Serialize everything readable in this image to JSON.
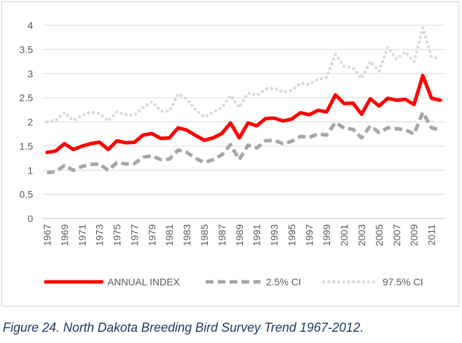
{
  "caption": "Figure 24. North Dakota Breeding Bird Survey Trend 1967-2012.",
  "chart_data": {
    "type": "line",
    "title": "",
    "xlabel": "",
    "ylabel": "",
    "ylim": [
      0,
      4
    ],
    "y_ticks": [
      "0",
      "0.5",
      "1",
      "1.5",
      "2",
      "2.5",
      "3",
      "3.5",
      "4"
    ],
    "grid": true,
    "legend_position": "bottom",
    "x": [
      1967,
      1968,
      1969,
      1970,
      1971,
      1972,
      1973,
      1974,
      1975,
      1976,
      1977,
      1978,
      1979,
      1980,
      1981,
      1982,
      1983,
      1984,
      1985,
      1986,
      1987,
      1988,
      1989,
      1990,
      1991,
      1992,
      1993,
      1994,
      1995,
      1996,
      1997,
      1998,
      1999,
      2000,
      2001,
      2002,
      2003,
      2004,
      2005,
      2006,
      2007,
      2008,
      2009,
      2010,
      2011,
      2012
    ],
    "x_tick_labels": [
      "1967",
      "1969",
      "1971",
      "1973",
      "1975",
      "1977",
      "1979",
      "1981",
      "1983",
      "1985",
      "1987",
      "1989",
      "1991",
      "1993",
      "1995",
      "1997",
      "1999",
      "2001",
      "2003",
      "2005",
      "2007",
      "2009",
      "2011"
    ],
    "series": [
      {
        "name": "ANNUAL INDEX",
        "color": "#ff0000",
        "style": "solid",
        "values": [
          1.37,
          1.4,
          1.55,
          1.43,
          1.5,
          1.55,
          1.58,
          1.43,
          1.61,
          1.57,
          1.58,
          1.73,
          1.76,
          1.66,
          1.67,
          1.88,
          1.83,
          1.72,
          1.62,
          1.67,
          1.76,
          1.98,
          1.67,
          1.98,
          1.92,
          2.07,
          2.08,
          2.02,
          2.06,
          2.19,
          2.15,
          2.24,
          2.21,
          2.56,
          2.38,
          2.39,
          2.16,
          2.48,
          2.33,
          2.49,
          2.45,
          2.47,
          2.36,
          2.96,
          2.49,
          2.45
        ]
      },
      {
        "name": "2.5% CI",
        "color": "#a6a6a6",
        "style": "dashed",
        "values": [
          0.95,
          0.97,
          1.1,
          1.0,
          1.08,
          1.12,
          1.13,
          1.0,
          1.16,
          1.13,
          1.14,
          1.27,
          1.3,
          1.22,
          1.23,
          1.42,
          1.37,
          1.25,
          1.16,
          1.22,
          1.32,
          1.53,
          1.22,
          1.52,
          1.46,
          1.61,
          1.62,
          1.55,
          1.6,
          1.7,
          1.68,
          1.75,
          1.73,
          1.99,
          1.87,
          1.85,
          1.67,
          1.92,
          1.78,
          1.88,
          1.86,
          1.84,
          1.75,
          2.2,
          1.88,
          1.83
        ]
      },
      {
        "name": "97.5% CI",
        "color": "#d9d9d9",
        "style": "dotted",
        "values": [
          2.0,
          2.03,
          2.2,
          2.03,
          2.14,
          2.2,
          2.18,
          2.02,
          2.21,
          2.15,
          2.14,
          2.3,
          2.42,
          2.23,
          2.22,
          2.58,
          2.47,
          2.25,
          2.1,
          2.2,
          2.3,
          2.55,
          2.3,
          2.6,
          2.55,
          2.68,
          2.7,
          2.62,
          2.65,
          2.8,
          2.78,
          2.88,
          2.92,
          3.4,
          3.15,
          3.12,
          2.9,
          3.25,
          3.05,
          3.55,
          3.3,
          3.45,
          3.25,
          3.95,
          3.35,
          3.3
        ]
      }
    ]
  }
}
